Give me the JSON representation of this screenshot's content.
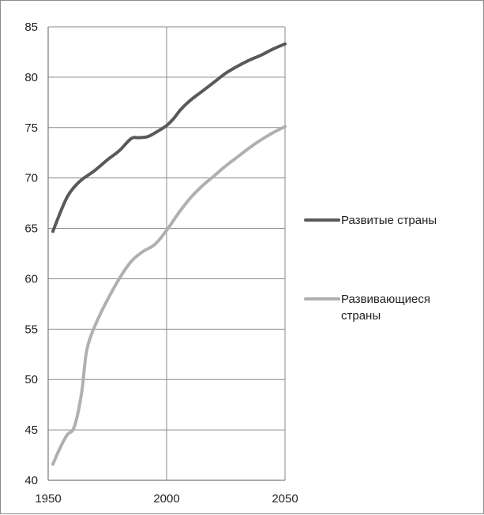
{
  "chart_data": {
    "type": "line",
    "title": "",
    "xlabel": "",
    "ylabel": "",
    "xlim": [
      1950,
      2050
    ],
    "ylim": [
      40,
      85
    ],
    "x_ticks": [
      "1950",
      "2000",
      "2050"
    ],
    "y_ticks": [
      "40",
      "45",
      "50",
      "55",
      "60",
      "65",
      "70",
      "75",
      "80",
      "85"
    ],
    "grid": true,
    "legend_position": "right",
    "series": [
      {
        "name": "Развитые страны",
        "color": "#595959",
        "x": [
          1952,
          1955,
          1958,
          1961,
          1964,
          1967,
          1970,
          1975,
          1980,
          1985,
          1988,
          1992,
          1996,
          2000,
          2003,
          2006,
          2010,
          2015,
          2020,
          2025,
          2030,
          2035,
          2040,
          2045,
          2050
        ],
        "y": [
          64.7,
          66.5,
          68.1,
          69.1,
          69.8,
          70.3,
          70.8,
          71.8,
          72.7,
          73.9,
          74.0,
          74.1,
          74.6,
          75.2,
          75.9,
          76.8,
          77.7,
          78.6,
          79.5,
          80.4,
          81.1,
          81.7,
          82.2,
          82.8,
          83.3
        ]
      },
      {
        "name": "Развивающиеся страны",
        "color": "#b0b0b0",
        "x": [
          1952,
          1955,
          1958,
          1961,
          1964,
          1966,
          1968,
          1971,
          1975,
          1980,
          1985,
          1990,
          1995,
          2000,
          2005,
          2010,
          2015,
          2020,
          2025,
          2030,
          2035,
          2040,
          2045,
          2050
        ],
        "y": [
          41.6,
          43.2,
          44.5,
          45.3,
          48.5,
          52.5,
          54.3,
          56.0,
          57.9,
          60.0,
          61.7,
          62.7,
          63.4,
          64.8,
          66.5,
          68.0,
          69.2,
          70.2,
          71.2,
          72.1,
          73.0,
          73.8,
          74.5,
          75.1
        ]
      }
    ]
  }
}
